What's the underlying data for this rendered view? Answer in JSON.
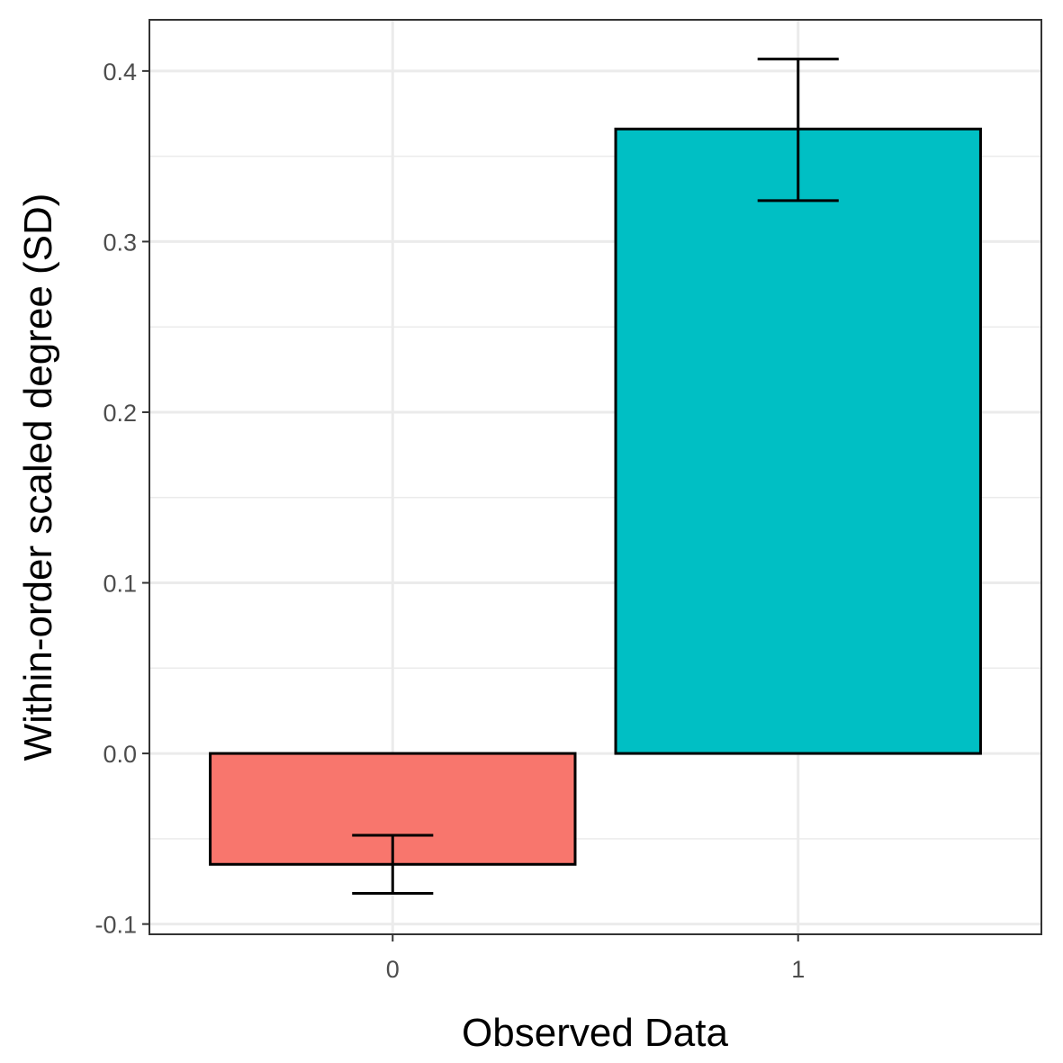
{
  "chart_data": {
    "type": "bar",
    "title": "",
    "xlabel": "Observed Data",
    "ylabel": "Within-order scaled degree (SD)",
    "categories": [
      "0",
      "1"
    ],
    "values": [
      -0.065,
      0.366
    ],
    "error_bars": [
      {
        "low": -0.082,
        "high": -0.048
      },
      {
        "low": 0.324,
        "high": 0.407
      }
    ],
    "colors": [
      "#F8766D",
      "#00BFC4"
    ],
    "ylim": [
      -0.106,
      0.43
    ],
    "yticks": [
      -0.1,
      0.0,
      0.1,
      0.2,
      0.3,
      0.4
    ],
    "ytick_labels": [
      "-0.1",
      "0.0",
      "0.1",
      "0.2",
      "0.3",
      "0.4"
    ],
    "yminor": [
      -0.05,
      0.05,
      0.15,
      0.25,
      0.35
    ],
    "grid": true,
    "legend": "none"
  }
}
